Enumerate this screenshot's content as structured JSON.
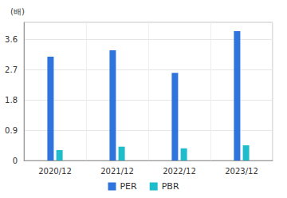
{
  "chart_data": {
    "type": "bar",
    "ylabel": "(배)",
    "categories": [
      "2020/12",
      "2021/12",
      "2022/12",
      "2023/12"
    ],
    "series": [
      {
        "name": "PER",
        "color": "#2f73dc",
        "values": [
          3.08,
          3.27,
          2.6,
          3.84
        ]
      },
      {
        "name": "PBR",
        "color": "#1fbccb",
        "values": [
          0.31,
          0.41,
          0.36,
          0.45
        ]
      }
    ],
    "ylim": [
      0,
      4.1
    ],
    "yticks": [
      0,
      0.9,
      1.8,
      2.7,
      3.6
    ],
    "grid": true,
    "legend": "bottom"
  }
}
